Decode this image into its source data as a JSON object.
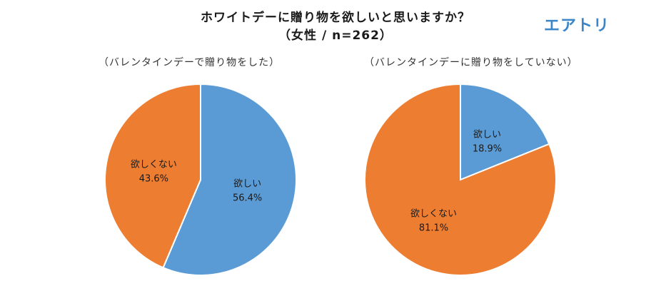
{
  "header": {
    "title_line1": "ホワイトデーに贈り物を欲しいと思いますか？",
    "title_line2": "（女性 / n=262）",
    "logo": "エアトリ"
  },
  "colors": {
    "blue": "#5b9bd5",
    "orange": "#ed7d31"
  },
  "chart_data": [
    {
      "type": "pie",
      "subtitle": "（バレンタインデーで贈り物をした）",
      "slices": [
        {
          "label": "欲しい",
          "value": 56.4,
          "value_label": "56.4%",
          "color": "#5b9bd5"
        },
        {
          "label": "欲しくない",
          "value": 43.6,
          "value_label": "43.6%",
          "color": "#ed7d31"
        }
      ]
    },
    {
      "type": "pie",
      "subtitle": "（バレンタインデーに贈り物をしていない）",
      "slices": [
        {
          "label": "欲しい",
          "value": 18.9,
          "value_label": "18.9%",
          "color": "#5b9bd5"
        },
        {
          "label": "欲しくない",
          "value": 81.1,
          "value_label": "81.1%",
          "color": "#ed7d31"
        }
      ]
    }
  ]
}
